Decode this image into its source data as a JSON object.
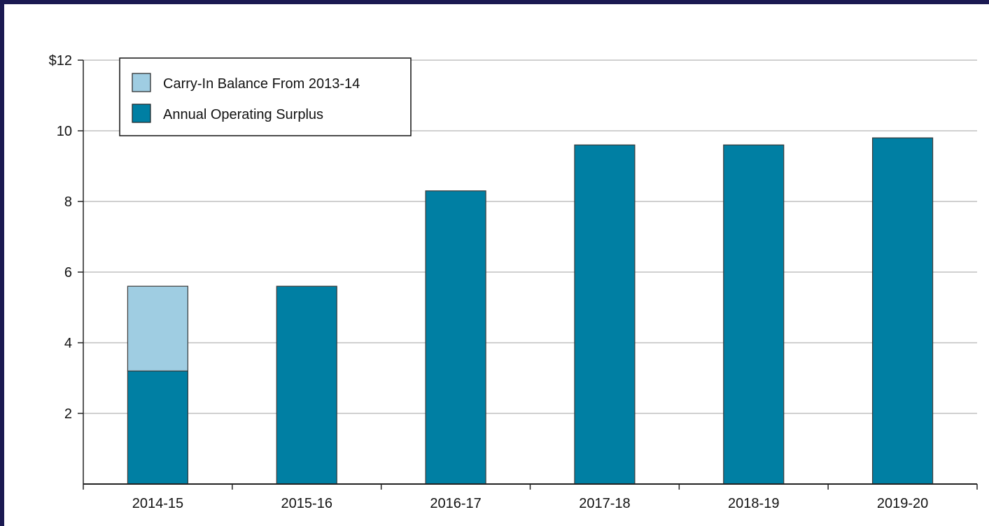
{
  "chart_data": {
    "type": "bar",
    "stacked": true,
    "categories": [
      "2014-15",
      "2015-16",
      "2016-17",
      "2017-18",
      "2018-19",
      "2019-20"
    ],
    "series": [
      {
        "name": "Annual Operating Surplus",
        "color": "#007fa3",
        "values": [
          3.2,
          5.6,
          8.3,
          9.6,
          9.6,
          9.8
        ]
      },
      {
        "name": "Carry-In Balance From 2013-14",
        "color": "#9fcde2",
        "values": [
          2.4,
          0,
          0,
          0,
          0,
          0
        ]
      }
    ],
    "legend_order": [
      "Carry-In Balance From 2013-14",
      "Annual Operating Surplus"
    ],
    "y_ticks": [
      2,
      4,
      6,
      8,
      10,
      12
    ],
    "y_tick_labels": [
      "2",
      "4",
      "6",
      "8",
      "10",
      "$12"
    ],
    "ylim": [
      0,
      12
    ],
    "grid": true,
    "legend_position": "top-left",
    "title": "",
    "xlabel": "",
    "ylabel": ""
  }
}
